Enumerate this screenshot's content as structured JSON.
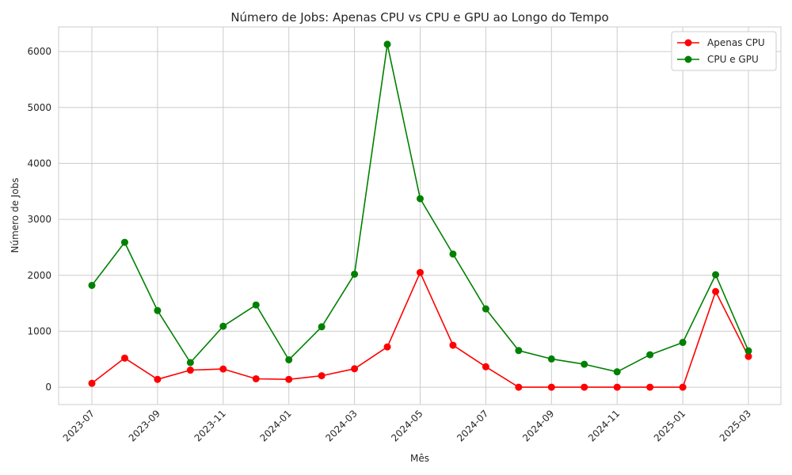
{
  "chart_data": {
    "type": "line",
    "title": "Número de Jobs: Apenas CPU vs CPU e GPU ao Longo do Tempo",
    "xlabel": "Mês",
    "ylabel": "Número de Jobs",
    "x": [
      "2023-07",
      "2023-08",
      "2023-09",
      "2023-10",
      "2023-11",
      "2023-12",
      "2024-01",
      "2024-02",
      "2024-03",
      "2024-04",
      "2024-05",
      "2024-06",
      "2024-07",
      "2024-08",
      "2024-09",
      "2024-10",
      "2024-11",
      "2024-12",
      "2025-01",
      "2025-02",
      "2025-03"
    ],
    "xticks": [
      "2023-07",
      "2023-09",
      "2023-11",
      "2024-01",
      "2024-03",
      "2024-05",
      "2024-07",
      "2024-09",
      "2024-11",
      "2025-01",
      "2025-03"
    ],
    "yticks": [
      0,
      1000,
      2000,
      3000,
      4000,
      5000,
      6000
    ],
    "ylim": [
      -310,
      6440
    ],
    "grid": true,
    "legend_position": "top-right",
    "series": [
      {
        "name": "Apenas CPU",
        "color": "#ff0000",
        "values": [
          70,
          520,
          140,
          305,
          325,
          150,
          140,
          205,
          330,
          720,
          2050,
          750,
          365,
          0,
          0,
          0,
          0,
          0,
          0,
          1710,
          550
        ]
      },
      {
        "name": "CPU e GPU",
        "color": "#008000",
        "values": [
          1820,
          2590,
          1370,
          440,
          1090,
          1470,
          490,
          1080,
          2020,
          6130,
          3370,
          2380,
          1400,
          655,
          505,
          410,
          275,
          580,
          800,
          2010,
          650
        ]
      }
    ]
  }
}
